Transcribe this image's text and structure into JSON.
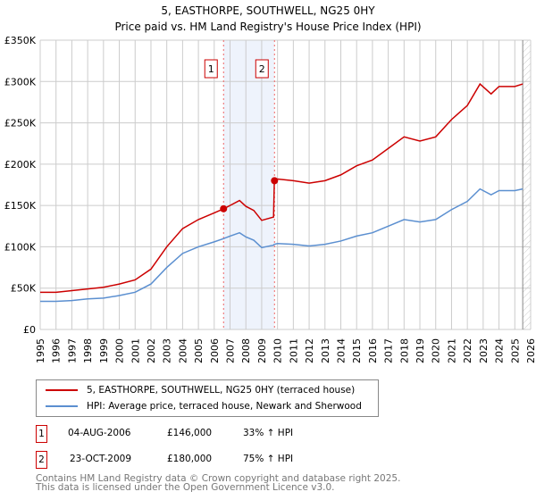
{
  "chart_data": {
    "type": "line",
    "title": "5, EASTHORPE, SOUTHWELL, NG25 0HY",
    "subtitle": "Price paid vs. HM Land Registry's House Price Index (HPI)",
    "xlim": [
      1995,
      2026
    ],
    "ylim": [
      0,
      350000
    ],
    "y_ticks": [
      0,
      50000,
      100000,
      150000,
      200000,
      250000,
      300000,
      350000
    ],
    "y_tick_labels": [
      "£0",
      "£50K",
      "£100K",
      "£150K",
      "£200K",
      "£250K",
      "£300K",
      "£350K"
    ],
    "x_ticks": [
      1995,
      1996,
      1997,
      1998,
      1999,
      2000,
      2001,
      2002,
      2003,
      2004,
      2005,
      2006,
      2007,
      2008,
      2009,
      2010,
      2011,
      2012,
      2013,
      2014,
      2015,
      2016,
      2017,
      2018,
      2019,
      2020,
      2021,
      2022,
      2023,
      2024,
      2025,
      2026
    ],
    "grid": true,
    "x": [
      1995,
      1996,
      1997,
      1998,
      1999,
      2000,
      2001,
      2002,
      2003,
      2004,
      2005,
      2006,
      2006.6,
      2007,
      2007.6,
      2008,
      2008.5,
      2009,
      2009.75,
      2009.8,
      2010,
      2011,
      2012,
      2013,
      2014,
      2015,
      2016,
      2017,
      2018,
      2019,
      2020,
      2021,
      2022,
      2022.8,
      2023.5,
      2024,
      2025,
      2025.5
    ],
    "series": [
      {
        "name": "5, EASTHORPE, SOUTHWELL, NG25 0HY (terraced house)",
        "color": "#cc0000",
        "values": [
          45000,
          45000,
          47000,
          49000,
          51000,
          55000,
          60000,
          73000,
          100000,
          122000,
          133000,
          141000,
          146000,
          150000,
          156000,
          149000,
          144000,
          132000,
          136000,
          180000,
          182000,
          180000,
          177000,
          180000,
          187000,
          198000,
          205000,
          219000,
          233000,
          228000,
          233000,
          254000,
          271000,
          297000,
          285000,
          294000,
          294000,
          297000
        ]
      },
      {
        "name": "HPI: Average price, terraced house, Newark and Sherwood",
        "color": "#5b8fd0",
        "values": [
          34000,
          34000,
          35000,
          37000,
          38000,
          41000,
          45000,
          55000,
          75000,
          92000,
          100000,
          106000,
          110000,
          113000,
          117000,
          112000,
          108000,
          99000,
          102000,
          103000,
          104000,
          103000,
          101000,
          103000,
          107000,
          113000,
          117000,
          125000,
          133000,
          130000,
          133000,
          145000,
          155000,
          170000,
          163000,
          168000,
          168000,
          170000
        ]
      }
    ],
    "sales": [
      {
        "label": "1",
        "x": 2006.59,
        "value": 146000,
        "date": "04-AUG-2006",
        "price": "£146,000",
        "hpi": "33% ↑ HPI"
      },
      {
        "label": "2",
        "x": 2009.81,
        "value": 180000,
        "date": "23-OCT-2009",
        "price": "£180,000",
        "hpi": "75% ↑ HPI"
      }
    ],
    "forecast_start": 2025.5,
    "legend_position": "below"
  },
  "footer": {
    "line1": "Contains HM Land Registry data © Crown copyright and database right 2025.",
    "line2": "This data is licensed under the Open Government Licence v3.0."
  }
}
